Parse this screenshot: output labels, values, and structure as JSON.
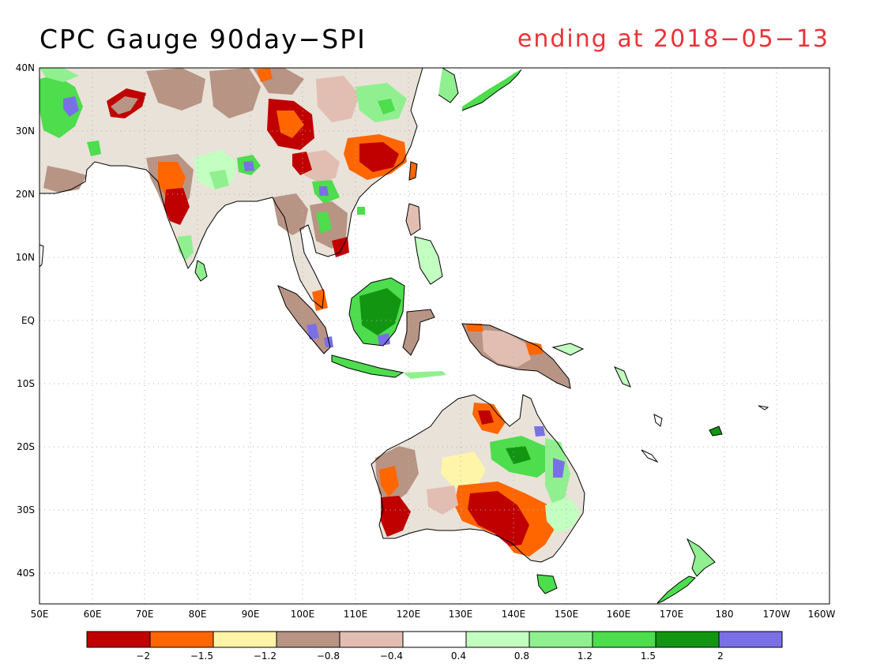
{
  "title": "CPC Gauge 90day−SPI",
  "subtitle": "ending at 2018−05−13",
  "colors": {
    "title_right": "#e8333a",
    "coast": "#000000",
    "grid": "#b0b0b0"
  },
  "map": {
    "lon_labels": [
      "50E",
      "60E",
      "70E",
      "80E",
      "90E",
      "100E",
      "110E",
      "120E",
      "130E",
      "140E",
      "150E",
      "160E",
      "170E",
      "180",
      "170W",
      "160W"
    ],
    "lat_labels": [
      "40N",
      "30N",
      "20N",
      "10N",
      "EQ",
      "10S",
      "20S",
      "30S",
      "40S"
    ]
  },
  "colorbar": {
    "colors": [
      "#c00000",
      "#ff6600",
      "#fff5a8",
      "#b89485",
      "#e2beb2",
      "#ffffff",
      "#c3ffc0",
      "#90f090",
      "#4ddd4d",
      "#129612",
      "#7a70e6"
    ],
    "labels": [
      "−2",
      "−1.5",
      "−1.2",
      "−0.8",
      "−0.4",
      "0.4",
      "0.8",
      "1.2",
      "1.5",
      "2"
    ]
  },
  "field_colors": {
    "dry_extreme": "#c00000",
    "dry_severe": "#ff6600",
    "dry_moderate": "#fff5a8",
    "dry_mild": "#b89485",
    "dry_slight": "#e2beb2",
    "wet_slight": "#c3ffc0",
    "wet_mild": "#90f090",
    "wet_moderate": "#4ddd4d",
    "wet_severe": "#129612",
    "wet_extreme": "#7a70e6"
  }
}
